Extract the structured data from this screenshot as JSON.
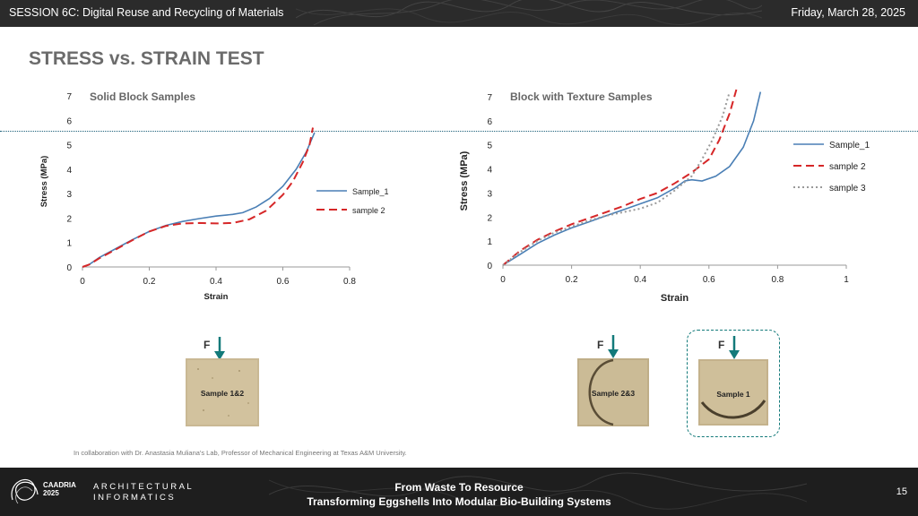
{
  "header": {
    "session": "SESSION 6C: Digital Reuse and Recycling of Materials",
    "date": "Friday, March 28, 2025"
  },
  "slide": {
    "title": "STRESS vs. STRAIN TEST",
    "collaboration_note": "In collaboration with Dr. Anastasia Muliana's Lab, Professor of Mechanical Engineering at Texas A&M University."
  },
  "chart_data": [
    {
      "type": "line",
      "title": "Solid Block Samples",
      "xlabel": "Strain",
      "ylabel": "Stress (MPa)",
      "xlim": [
        0,
        0.8
      ],
      "ylim": [
        0,
        7
      ],
      "xticks": [
        "0",
        "0.2",
        "0.4",
        "0.6",
        "0.8"
      ],
      "yticks": [
        "0",
        "1",
        "2",
        "3",
        "4",
        "5",
        "6",
        "7"
      ],
      "grid": false,
      "legend_position": "right",
      "series": [
        {
          "name": "Sample_1",
          "color": "#4a7fb5",
          "style": "solid",
          "points": [
            [
              0,
              0
            ],
            [
              0.02,
              0.1
            ],
            [
              0.05,
              0.38
            ],
            [
              0.1,
              0.75
            ],
            [
              0.15,
              1.12
            ],
            [
              0.2,
              1.45
            ],
            [
              0.25,
              1.7
            ],
            [
              0.3,
              1.86
            ],
            [
              0.35,
              1.98
            ],
            [
              0.4,
              2.08
            ],
            [
              0.45,
              2.15
            ],
            [
              0.48,
              2.22
            ],
            [
              0.52,
              2.45
            ],
            [
              0.56,
              2.8
            ],
            [
              0.6,
              3.3
            ],
            [
              0.64,
              4.0
            ],
            [
              0.67,
              4.7
            ],
            [
              0.695,
              5.5
            ]
          ]
        },
        {
          "name": "sample 2",
          "color": "#d62728",
          "style": "dashed",
          "points": [
            [
              0,
              0
            ],
            [
              0.02,
              0.1
            ],
            [
              0.05,
              0.35
            ],
            [
              0.1,
              0.72
            ],
            [
              0.15,
              1.1
            ],
            [
              0.2,
              1.45
            ],
            [
              0.25,
              1.68
            ],
            [
              0.3,
              1.78
            ],
            [
              0.35,
              1.8
            ],
            [
              0.4,
              1.78
            ],
            [
              0.45,
              1.8
            ],
            [
              0.5,
              1.95
            ],
            [
              0.55,
              2.3
            ],
            [
              0.6,
              2.95
            ],
            [
              0.63,
              3.5
            ],
            [
              0.66,
              4.3
            ],
            [
              0.68,
              5.0
            ],
            [
              0.69,
              5.7
            ]
          ]
        }
      ]
    },
    {
      "type": "line",
      "title": "Block with Texture Samples",
      "xlabel": "Strain",
      "ylabel": "Stress (MPa)",
      "xlim": [
        0,
        1
      ],
      "ylim": [
        0,
        7
      ],
      "xticks": [
        "0",
        "0.2",
        "0.4",
        "0.6",
        "0.8",
        "1"
      ],
      "yticks": [
        "0",
        "1",
        "2",
        "3",
        "4",
        "5",
        "6",
        "7"
      ],
      "grid": false,
      "legend_position": "right",
      "series": [
        {
          "name": "Sample_1",
          "color": "#4a7fb5",
          "style": "solid",
          "points": [
            [
              0,
              0
            ],
            [
              0.05,
              0.45
            ],
            [
              0.1,
              0.9
            ],
            [
              0.15,
              1.25
            ],
            [
              0.2,
              1.55
            ],
            [
              0.25,
              1.8
            ],
            [
              0.3,
              2.05
            ],
            [
              0.35,
              2.3
            ],
            [
              0.4,
              2.55
            ],
            [
              0.45,
              2.8
            ],
            [
              0.5,
              3.2
            ],
            [
              0.53,
              3.5
            ],
            [
              0.55,
              3.55
            ],
            [
              0.58,
              3.5
            ],
            [
              0.62,
              3.7
            ],
            [
              0.66,
              4.1
            ],
            [
              0.7,
              4.9
            ],
            [
              0.73,
              6.0
            ],
            [
              0.75,
              7.2
            ]
          ]
        },
        {
          "name": "sample 2",
          "color": "#d62728",
          "style": "dashed",
          "points": [
            [
              0,
              0
            ],
            [
              0.05,
              0.6
            ],
            [
              0.1,
              1.05
            ],
            [
              0.15,
              1.4
            ],
            [
              0.2,
              1.7
            ],
            [
              0.25,
              1.95
            ],
            [
              0.3,
              2.2
            ],
            [
              0.35,
              2.45
            ],
            [
              0.4,
              2.75
            ],
            [
              0.45,
              3.0
            ],
            [
              0.5,
              3.4
            ],
            [
              0.55,
              3.85
            ],
            [
              0.6,
              4.4
            ],
            [
              0.63,
              5.2
            ],
            [
              0.66,
              6.3
            ],
            [
              0.68,
              7.3
            ]
          ]
        },
        {
          "name": "sample 3",
          "color": "#999999",
          "style": "dotted",
          "points": [
            [
              0,
              0
            ],
            [
              0.05,
              0.55
            ],
            [
              0.1,
              1.0
            ],
            [
              0.15,
              1.35
            ],
            [
              0.2,
              1.6
            ],
            [
              0.25,
              1.85
            ],
            [
              0.3,
              2.05
            ],
            [
              0.35,
              2.2
            ],
            [
              0.4,
              2.35
            ],
            [
              0.45,
              2.6
            ],
            [
              0.5,
              3.1
            ],
            [
              0.55,
              3.7
            ],
            [
              0.58,
              4.4
            ],
            [
              0.61,
              5.2
            ],
            [
              0.64,
              6.2
            ],
            [
              0.66,
              7.2
            ]
          ]
        }
      ]
    }
  ],
  "samples": [
    {
      "label": "Sample 1&2",
      "force_label": "F"
    },
    {
      "label": "Sample 2&3",
      "force_label": "F"
    },
    {
      "label": "Sample 1",
      "force_label": "F"
    }
  ],
  "footer": {
    "conference": "CAADRIA 2025",
    "conference_name": "CAADRIA",
    "conference_year": "2025",
    "group_line1": "ARCHITECTURAL",
    "group_line2": "INFORMATICS",
    "talk_title": "From Waste To Resource",
    "talk_subtitle": "Transforming Eggshells Into Modular Bio-Building Systems",
    "page_number": "15"
  }
}
